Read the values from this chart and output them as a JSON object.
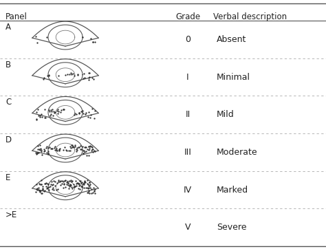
{
  "panels": [
    "A",
    "B",
    "C",
    "D",
    "E",
    ">E"
  ],
  "grades": [
    "0",
    "I",
    "II",
    "III",
    "IV",
    "V"
  ],
  "descriptions": [
    "Absent",
    "Minimal",
    "Mild",
    "Moderate",
    "Marked",
    "Severe"
  ],
  "header": [
    "Panel",
    "Grade",
    "Verbal description"
  ],
  "bg_color": "#ffffff",
  "text_color": "#222222",
  "dot_counts": [
    8,
    25,
    50,
    90,
    140,
    0
  ],
  "fig_width": 4.74,
  "fig_height": 3.65
}
